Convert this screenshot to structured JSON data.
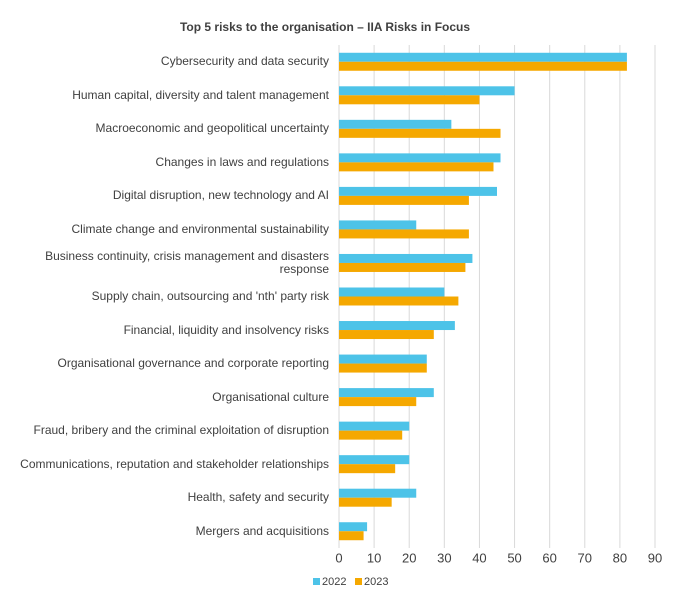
{
  "chart_data": {
    "type": "barh",
    "title": "Top 5 risks to the organisation – IIA Risks in Focus",
    "categories": [
      "Cybersecurity and data security",
      "Human capital, diversity and talent management",
      "Macroeconomic and geopolitical uncertainty",
      "Changes in laws and regulations",
      "Digital disruption, new technology and AI",
      "Climate change and environmental sustainability",
      "Business continuity, crisis management and disasters response",
      "Supply chain, outsourcing and 'nth' party risk",
      "Financial, liquidity and insolvency risks",
      "Organisational governance and corporate reporting",
      "Organisational culture",
      "Fraud, bribery and the criminal exploitation of disruption",
      "Communications, reputation and stakeholder relationships",
      "Health, safety and security",
      "Mergers and acquisitions"
    ],
    "series": [
      {
        "name": "2022",
        "color": "#4dc3e8",
        "values": [
          82,
          50,
          32,
          46,
          45,
          22,
          38,
          30,
          33,
          25,
          27,
          20,
          20,
          22,
          8
        ]
      },
      {
        "name": "2023",
        "color": "#f5a800",
        "values": [
          82,
          40,
          46,
          44,
          37,
          37,
          36,
          34,
          27,
          25,
          22,
          18,
          16,
          15,
          7
        ]
      }
    ],
    "xlim": [
      0,
      90
    ],
    "xticks": [
      0,
      10,
      20,
      30,
      40,
      50,
      60,
      70,
      80,
      90
    ],
    "grid": true,
    "legend": "bottom"
  }
}
